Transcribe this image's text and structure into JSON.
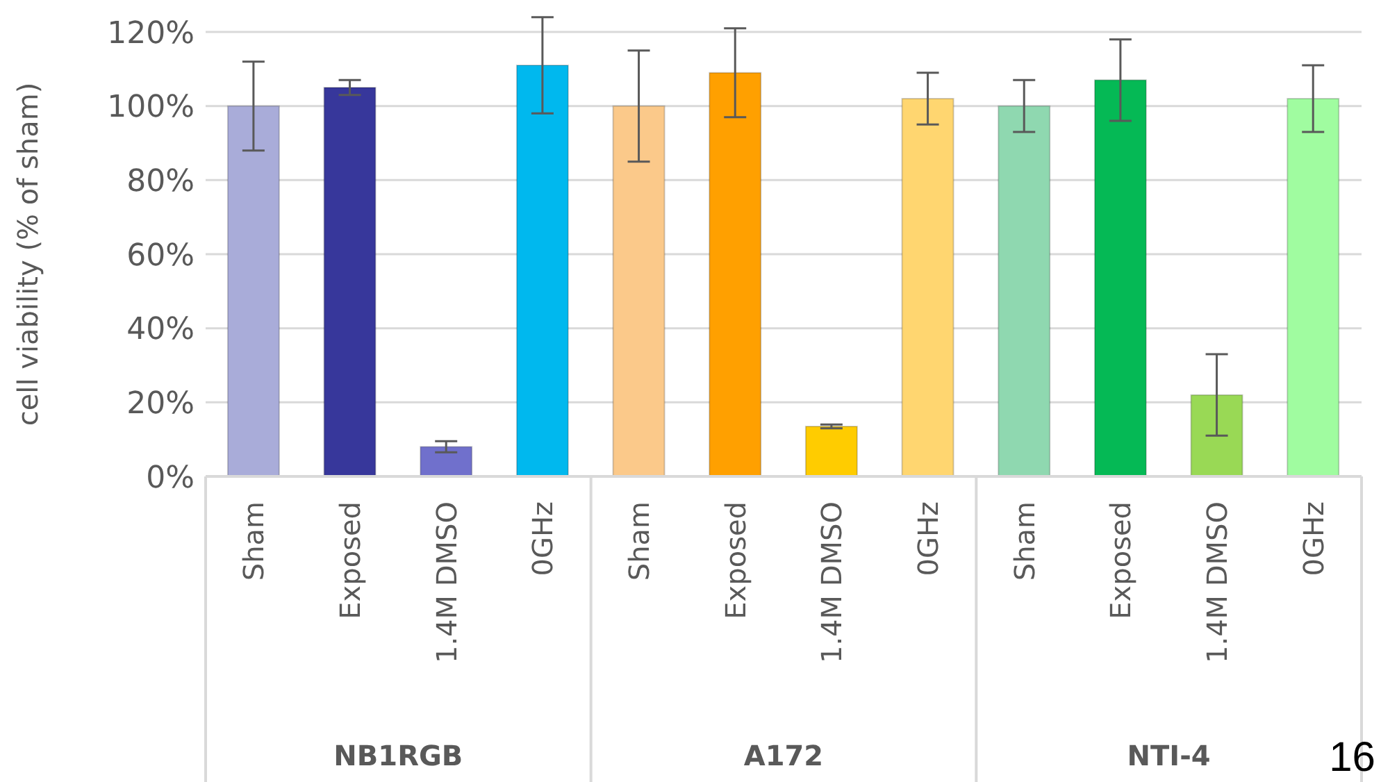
{
  "chart_data": {
    "type": "bar",
    "ylabel": "cell viability (% of sham)",
    "categories": [
      "Sham",
      "Exposed",
      "1.4M DMSO",
      "0GHz",
      "Sham",
      "Exposed",
      "1.4M DMSO",
      "0GHz",
      "Sham",
      "Exposed",
      "1.4M DMSO",
      "0GHz"
    ],
    "values": [
      100,
      105,
      8,
      111,
      100,
      109,
      13.5,
      102,
      100,
      107,
      22,
      102
    ],
    "errors": [
      12,
      2,
      1.5,
      13,
      15,
      12,
      0.5,
      7,
      7,
      11,
      11,
      9
    ],
    "colors": [
      "#a9acd9",
      "#37379b",
      "#7070cc",
      "#00b8ee",
      "#fbc98a",
      "#ffa000",
      "#ffcc00",
      "#ffd670",
      "#8fd8b0",
      "#05b955",
      "#99d955",
      "#a0fca0"
    ],
    "ylim": [
      0,
      120
    ],
    "yticks": [
      {
        "value": 0,
        "label": "0%"
      },
      {
        "value": 20,
        "label": "20%"
      },
      {
        "value": 40,
        "label": "40%"
      },
      {
        "value": 60,
        "label": "60%"
      },
      {
        "value": 80,
        "label": "80%"
      },
      {
        "value": 100,
        "label": "100%"
      },
      {
        "value": 120,
        "label": "120%"
      }
    ],
    "grid": "y",
    "annotations": [
      "NB1RGB",
      "A172",
      "NTI-4",
      "16"
    ]
  }
}
